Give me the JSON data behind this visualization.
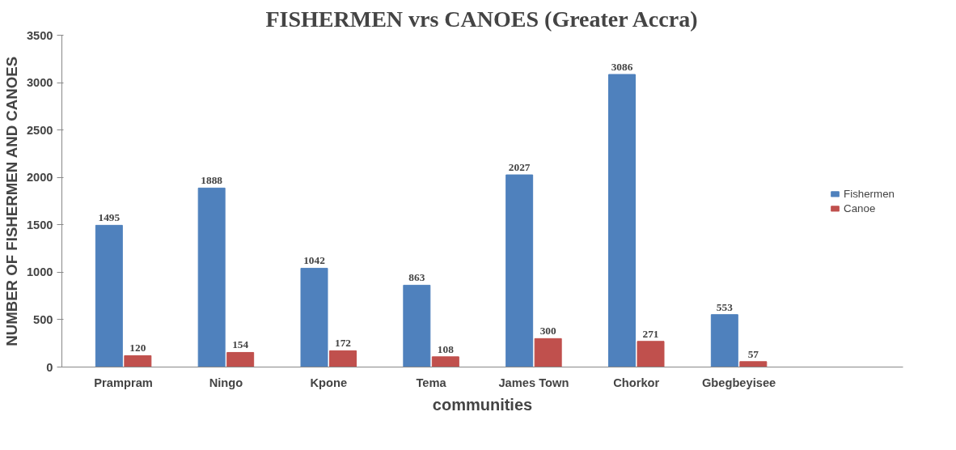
{
  "chart_data": {
    "type": "bar",
    "title": "FISHERMEN vrs CANOES (Greater Accra)",
    "xlabel": "communities",
    "ylabel": "NUMBER OF FISHERMEN AND CANOES",
    "categories": [
      "Prampram",
      "Ningo",
      "Kpone",
      "Tema",
      "James Town",
      "Chorkor",
      "Gbegbeyisee"
    ],
    "series": [
      {
        "name": "Fishermen",
        "color": "#4f81bd",
        "values": [
          1495,
          1888,
          1042,
          863,
          2027,
          3086,
          553
        ]
      },
      {
        "name": "Canoe",
        "color": "#c0504d",
        "values": [
          120,
          154,
          172,
          108,
          300,
          271,
          57
        ]
      }
    ],
    "ylim": [
      0,
      3500
    ],
    "yticks": [
      0,
      500,
      1000,
      1500,
      2000,
      2500,
      3000,
      3500
    ],
    "grid": false,
    "legend": "right",
    "data_labels": true
  }
}
